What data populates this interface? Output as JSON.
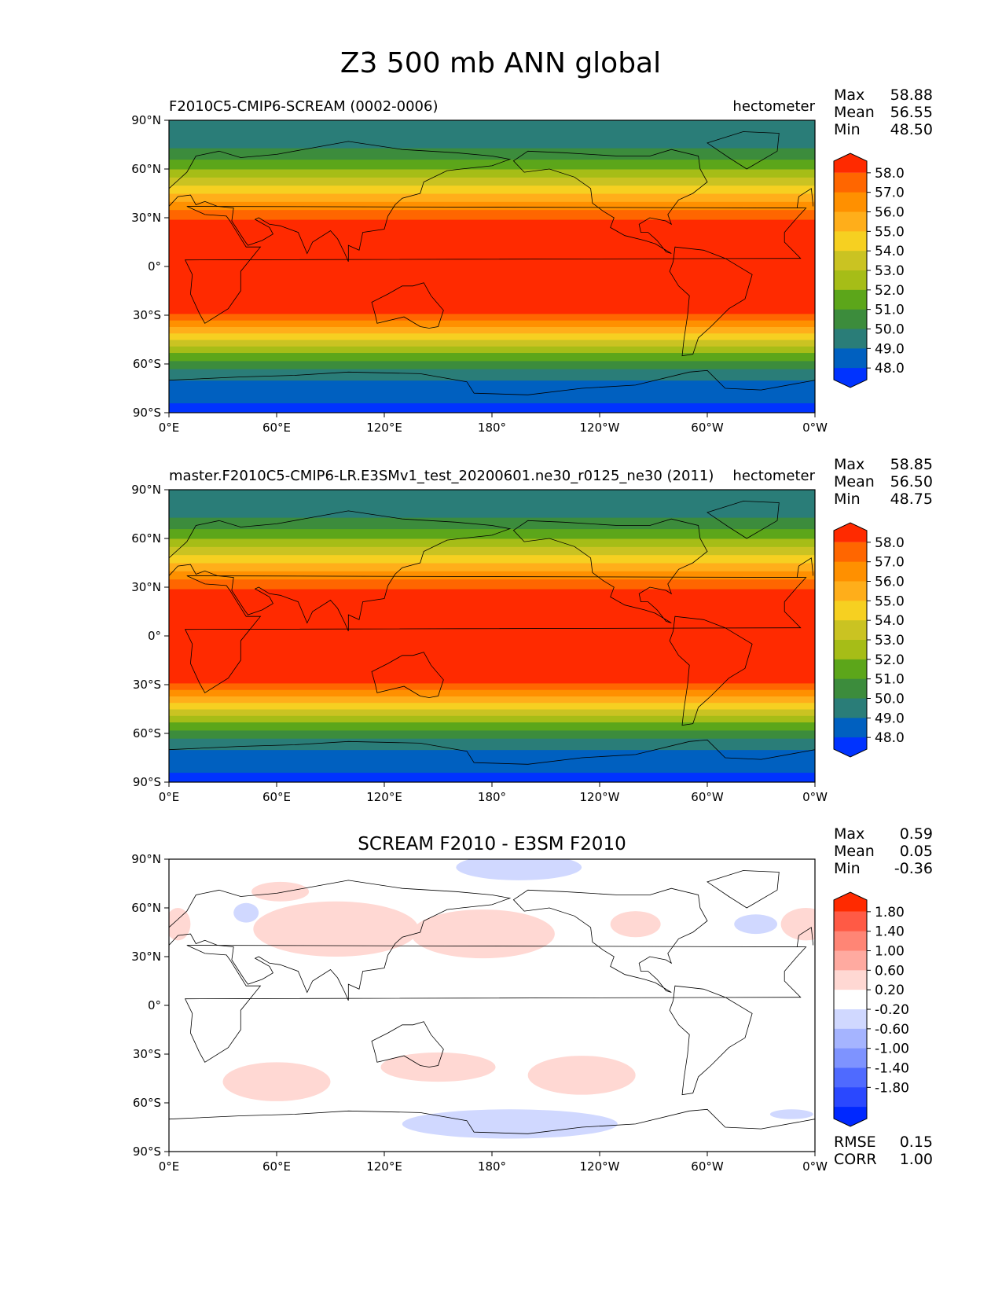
{
  "figure": {
    "title": "Z3 500 mb ANN global",
    "xtick_labels": [
      "0°E",
      "60°E",
      "120°E",
      "180°",
      "120°W",
      "60°W",
      "0°W"
    ],
    "ytick_labels": [
      "90°N",
      "60°N",
      "30°N",
      "0°",
      "30°S",
      "60°S",
      "90°S"
    ]
  },
  "chart_data": [
    {
      "type": "heatmap",
      "title": "F2010C5-CMIP6-SCREAM (0002-0006)",
      "units": "hectometer",
      "stats": [
        {
          "label": "Max",
          "value": "58.88"
        },
        {
          "label": "Mean",
          "value": "56.55"
        },
        {
          "label": "Min",
          "value": "48.50"
        }
      ],
      "colorbar": {
        "levels": [
          "58.0",
          "57.0",
          "56.0",
          "55.0",
          "54.0",
          "53.0",
          "52.0",
          "51.0",
          "50.0",
          "49.0",
          "48.0"
        ],
        "colors": [
          "#ff2a00",
          "#ff6600",
          "#ff9000",
          "#ffae1a",
          "#f6d021",
          "#cac322",
          "#a6bd17",
          "#5ca61a",
          "#3c8c3c",
          "#2a7d78",
          "#0060c0",
          "#0033ff"
        ],
        "extend": "both"
      },
      "x_range": [
        0,
        360
      ],
      "y_range": [
        -90,
        90
      ],
      "zonal_band_edges": [
        -90,
        -84,
        -70,
        -63,
        -58,
        -53,
        -49,
        -45,
        -41,
        -37,
        -33,
        -29,
        29,
        35,
        40,
        45,
        50,
        55,
        60,
        66,
        73,
        90
      ]
    },
    {
      "type": "heatmap",
      "title": "master.F2010C5-CMIP6-LR.E3SMv1_test_20200601.ne30_r0125_ne30 (2011)",
      "units": "hectometer",
      "stats": [
        {
          "label": "Max",
          "value": "58.85"
        },
        {
          "label": "Mean",
          "value": "56.50"
        },
        {
          "label": "Min",
          "value": "48.75"
        }
      ],
      "colorbar": {
        "levels": [
          "58.0",
          "57.0",
          "56.0",
          "55.0",
          "54.0",
          "53.0",
          "52.0",
          "51.0",
          "50.0",
          "49.0",
          "48.0"
        ],
        "colors": [
          "#ff2a00",
          "#ff6600",
          "#ff9000",
          "#ffae1a",
          "#f6d021",
          "#cac322",
          "#a6bd17",
          "#5ca61a",
          "#3c8c3c",
          "#2a7d78",
          "#0060c0",
          "#0033ff"
        ],
        "extend": "both"
      },
      "x_range": [
        0,
        360
      ],
      "y_range": [
        -90,
        90
      ],
      "zonal_band_edges": [
        -90,
        -84,
        -70,
        -63,
        -58,
        -53,
        -49,
        -45,
        -41,
        -37,
        -33,
        -29,
        29,
        35,
        40,
        45,
        50,
        55,
        60,
        66,
        73,
        90
      ]
    },
    {
      "type": "heatmap",
      "title": "SCREAM F2010 - E3SM F2010",
      "units": "",
      "stats": [
        {
          "label": "Max",
          "value": "0.59"
        },
        {
          "label": "Mean",
          "value": "0.05"
        },
        {
          "label": "Min",
          "value": "-0.36"
        }
      ],
      "bottom_stats": [
        {
          "label": "RMSE",
          "value": "0.15"
        },
        {
          "label": "CORR",
          "value": "1.00"
        }
      ],
      "colorbar": {
        "levels": [
          "1.80",
          "1.40",
          "1.00",
          "0.60",
          "0.20",
          "-0.20",
          "-0.60",
          "-1.00",
          "-1.40",
          "-1.80"
        ],
        "colors": [
          "#ff2a00",
          "#ff5a45",
          "#ff8575",
          "#ffaaa0",
          "#ffd8d3",
          "#ffffff",
          "#d0d8ff",
          "#a5b4ff",
          "#7e93ff",
          "#4f6aff",
          "#2a48ff",
          "#0028ff"
        ],
        "extend": "both"
      },
      "x_range": [
        0,
        360
      ],
      "y_range": [
        -90,
        90
      ],
      "positive_anomaly_regions": [
        {
          "lon": 62,
          "lat": 70,
          "dlon": 16,
          "dlat": 6
        },
        {
          "lon": 93,
          "lat": 47,
          "dlon": 46,
          "dlat": 17
        },
        {
          "lon": 175,
          "lat": 44,
          "dlon": 40,
          "dlat": 15
        },
        {
          "lon": 260,
          "lat": 50,
          "dlon": 14,
          "dlat": 8
        },
        {
          "lon": 355,
          "lat": 50,
          "dlon": 14,
          "dlat": 10
        },
        {
          "lon": 5,
          "lat": 50,
          "dlon": 7,
          "dlat": 10
        },
        {
          "lon": 150,
          "lat": -38,
          "dlon": 32,
          "dlat": 9
        },
        {
          "lon": 230,
          "lat": -43,
          "dlon": 30,
          "dlat": 12
        },
        {
          "lon": 60,
          "lat": -47,
          "dlon": 30,
          "dlat": 12
        }
      ],
      "negative_anomaly_regions": [
        {
          "lon": 195,
          "lat": 85,
          "dlon": 35,
          "dlat": 8
        },
        {
          "lon": 43,
          "lat": 57,
          "dlon": 7,
          "dlat": 6
        },
        {
          "lon": 327,
          "lat": 50,
          "dlon": 12,
          "dlat": 6
        },
        {
          "lon": 190,
          "lat": -73,
          "dlon": 60,
          "dlat": 9
        },
        {
          "lon": 347,
          "lat": -67,
          "dlon": 12,
          "dlat": 3
        }
      ]
    }
  ]
}
